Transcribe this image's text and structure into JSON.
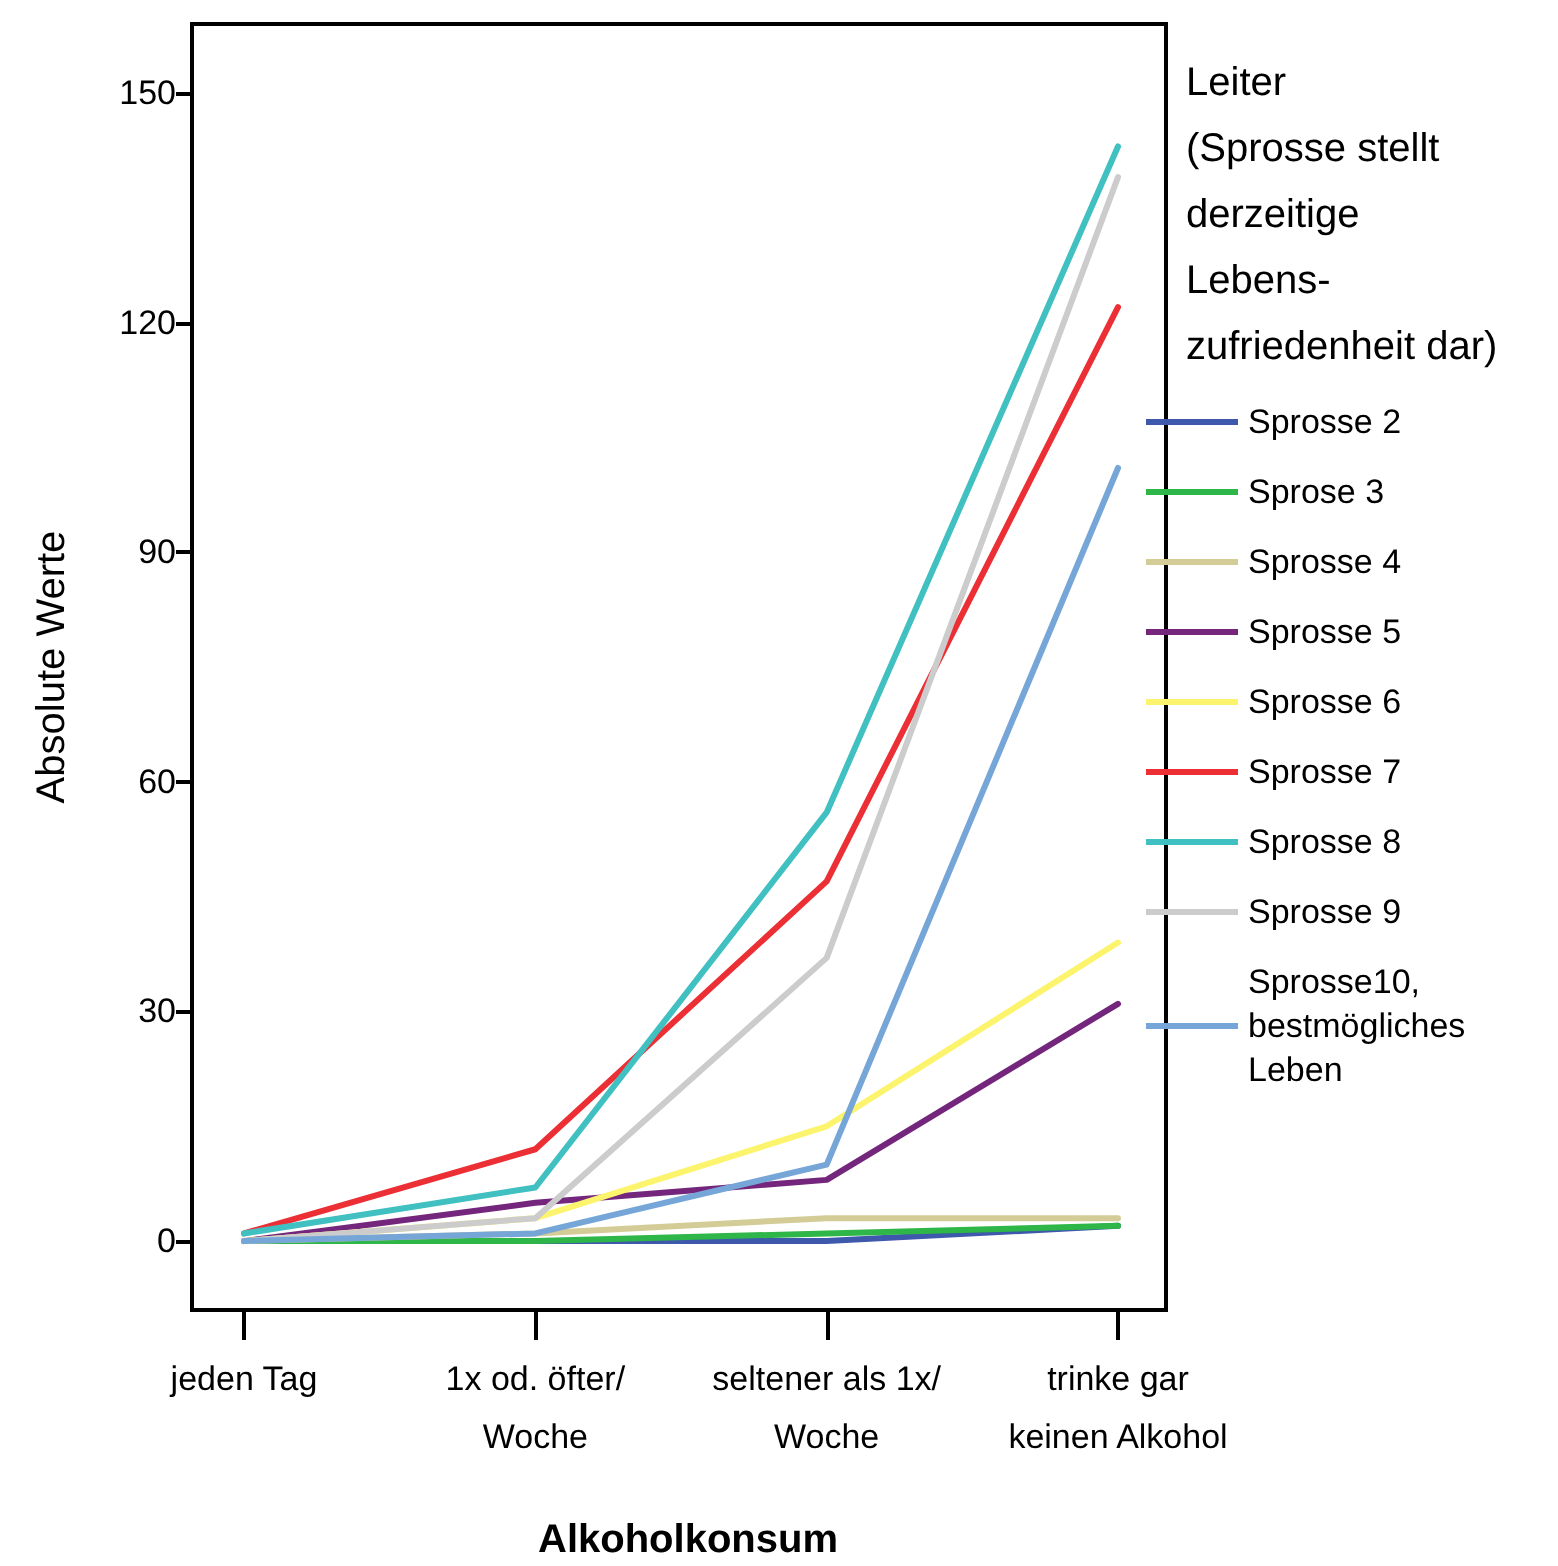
{
  "chart_data": {
    "type": "line",
    "xlabel": "Alkoholkonsum",
    "ylabel": "Absolute Werte",
    "legend_title": "Leiter\n(Sprosse stellt\nderzeitige\nLebens-\nzufriedenheit dar)",
    "categories": [
      "jeden Tag",
      "1x od. öfter/\nWoche",
      "seltener als 1x/\nWoche",
      "trinke gar\nkeinen Alkohol"
    ],
    "series": [
      {
        "name": "Sprosse 2",
        "color": "#3e58ac",
        "values": [
          0,
          0,
          0,
          2
        ]
      },
      {
        "name": "Sprose 3",
        "color": "#2eb648",
        "values": [
          0,
          0,
          1,
          2
        ]
      },
      {
        "name": "Sprosse 4",
        "color": "#d4cc96",
        "values": [
          0,
          1,
          3,
          3
        ]
      },
      {
        "name": "Sprosse 5",
        "color": "#74267c",
        "values": [
          0,
          5,
          8,
          31
        ]
      },
      {
        "name": "Sprosse 6",
        "color": "#fcf46c",
        "values": [
          0,
          3,
          15,
          39
        ]
      },
      {
        "name": "Sprosse 7",
        "color": "#ec2f35",
        "values": [
          1,
          12,
          47,
          122
        ]
      },
      {
        "name": "Sprosse 8",
        "color": "#40c0c0",
        "values": [
          1,
          7,
          56,
          143
        ]
      },
      {
        "name": "Sprosse 9",
        "color": "#cccccc",
        "values": [
          0,
          3,
          37,
          139
        ]
      },
      {
        "name": "Sprosse10,\nbestmögliches\nLeben",
        "color": "#76a6d8",
        "values": [
          0,
          1,
          10,
          101
        ]
      }
    ],
    "ylim": [
      -9,
      159
    ],
    "yticks": [
      0,
      30,
      60,
      90,
      120,
      150
    ],
    "grid": false,
    "legend": "right",
    "marker": "none",
    "line_style": "solid"
  }
}
